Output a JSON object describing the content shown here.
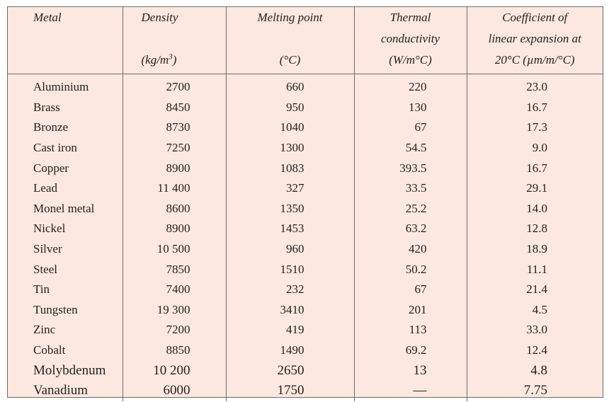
{
  "headers": {
    "metal": "Metal",
    "density": {
      "line1": "Density",
      "line3a": "(kg/m",
      "sup": "3",
      "line3b": ")"
    },
    "melting": {
      "line1": "Melting point",
      "line3": "(°C)"
    },
    "thermal": {
      "line1": "Thermal",
      "line2": "conductivity",
      "line3": "(W/m°C)"
    },
    "coef": {
      "line1": "Coefficient of",
      "line2": "linear expansion at",
      "line3": "20°C (µm/m/°C)"
    }
  },
  "rows": [
    {
      "metal": "Aluminium",
      "density": "2700",
      "melting": "660",
      "thermal": "220",
      "coef": "23.0"
    },
    {
      "metal": "Brass",
      "density": "8450",
      "melting": "950",
      "thermal": "130",
      "coef": "16.7"
    },
    {
      "metal": "Bronze",
      "density": "8730",
      "melting": "1040",
      "thermal": "67",
      "coef": "17.3"
    },
    {
      "metal": "Cast iron",
      "density": "7250",
      "melting": "1300",
      "thermal": "54.5",
      "coef": "9.0"
    },
    {
      "metal": "Copper",
      "density": "8900",
      "melting": "1083",
      "thermal": "393.5",
      "coef": "16.7"
    },
    {
      "metal": "Lead",
      "density": "11 400",
      "melting": "327",
      "thermal": "33.5",
      "coef": "29.1"
    },
    {
      "metal": "Monel metal",
      "density": "8600",
      "melting": "1350",
      "thermal": "25.2",
      "coef": "14.0"
    },
    {
      "metal": "Nickel",
      "density": "8900",
      "melting": "1453",
      "thermal": "63.2",
      "coef": "12.8"
    },
    {
      "metal": "Silver",
      "density": "10 500",
      "melting": "960",
      "thermal": "420",
      "coef": "18.9"
    },
    {
      "metal": "Steel",
      "density": "7850",
      "melting": "1510",
      "thermal": "50.2",
      "coef": "11.1"
    },
    {
      "metal": "Tin",
      "density": "7400",
      "melting": "232",
      "thermal": "67",
      "coef": "21.4"
    },
    {
      "metal": "Tungsten",
      "density": "19 300",
      "melting": "3410",
      "thermal": "201",
      "coef": "4.5"
    },
    {
      "metal": "Zinc",
      "density": "7200",
      "melting": "419",
      "thermal": "113",
      "coef": "33.0"
    },
    {
      "metal": "Cobalt",
      "density": "8850",
      "melting": "1490",
      "thermal": "69.2",
      "coef": "12.4"
    },
    {
      "metal": "Molybdenum",
      "density": "10 200",
      "melting": "2650",
      "thermal": "13",
      "coef": "4.8"
    },
    {
      "metal": "Vanadium",
      "density": "6000",
      "melting": "1750",
      "thermal": "—",
      "coef": "7.75"
    }
  ],
  "colors": {
    "background": "#fde8df",
    "rule": "#6b6b6b",
    "text": "#222222"
  }
}
